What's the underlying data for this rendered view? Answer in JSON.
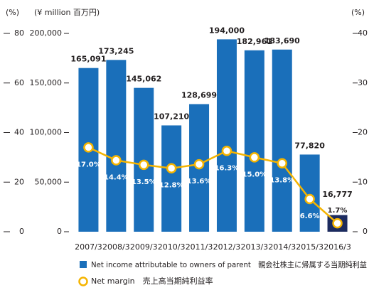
{
  "chart_data": {
    "type": "bar",
    "categories": [
      "2007/3",
      "2008/3",
      "2009/3",
      "2010/3",
      "2011/3",
      "2012/3",
      "2013/3",
      "2014/3",
      "2015/3",
      "2016/3"
    ],
    "y_unit": "(¥ million  百万円)",
    "y2_unit": "(%)",
    "y3_unit": "(%)",
    "series": [
      {
        "name": "Net income attributable to owners of parent　親会社株主に帰属する当期純利益",
        "type": "bar",
        "color": "#1a6fba",
        "highlight_color": "#1c2b5f",
        "values": [
          165091,
          173245,
          145062,
          107210,
          128699,
          194000,
          182961,
          183690,
          77820,
          16777
        ],
        "value_labels": [
          "165,091",
          "173,245",
          "145,062",
          "107,210",
          "128,699",
          "194,000",
          "182,961",
          "183,690",
          "77,820",
          "16,777"
        ]
      },
      {
        "name": "Net margin　売上高当期純利益率",
        "type": "line",
        "axis": "y2",
        "color": "#f5b400",
        "values": [
          17.0,
          14.4,
          13.5,
          12.8,
          13.6,
          16.3,
          15.0,
          13.8,
          6.6,
          1.7
        ],
        "value_labels": [
          "17.0%",
          "14.4%",
          "13.5%",
          "12.8%",
          "13.6%",
          "16.3%",
          "15.0%",
          "13.8%",
          "6.6%",
          "1.7%"
        ]
      }
    ],
    "ylim": [
      0,
      200000
    ],
    "yticks": [
      0,
      {
        "value": 50000,
        "label": "50,000"
      },
      {
        "value": 100000,
        "label": "100,000"
      },
      {
        "value": 150000,
        "label": "150,000"
      },
      {
        "value": 200000,
        "label": "200,000"
      }
    ],
    "y2lim": [
      0,
      40
    ],
    "y2ticks": [
      0,
      10,
      20,
      30,
      40
    ],
    "y3lim": [
      0,
      80
    ],
    "y3ticks": [
      0,
      20,
      40,
      60,
      80
    ]
  }
}
